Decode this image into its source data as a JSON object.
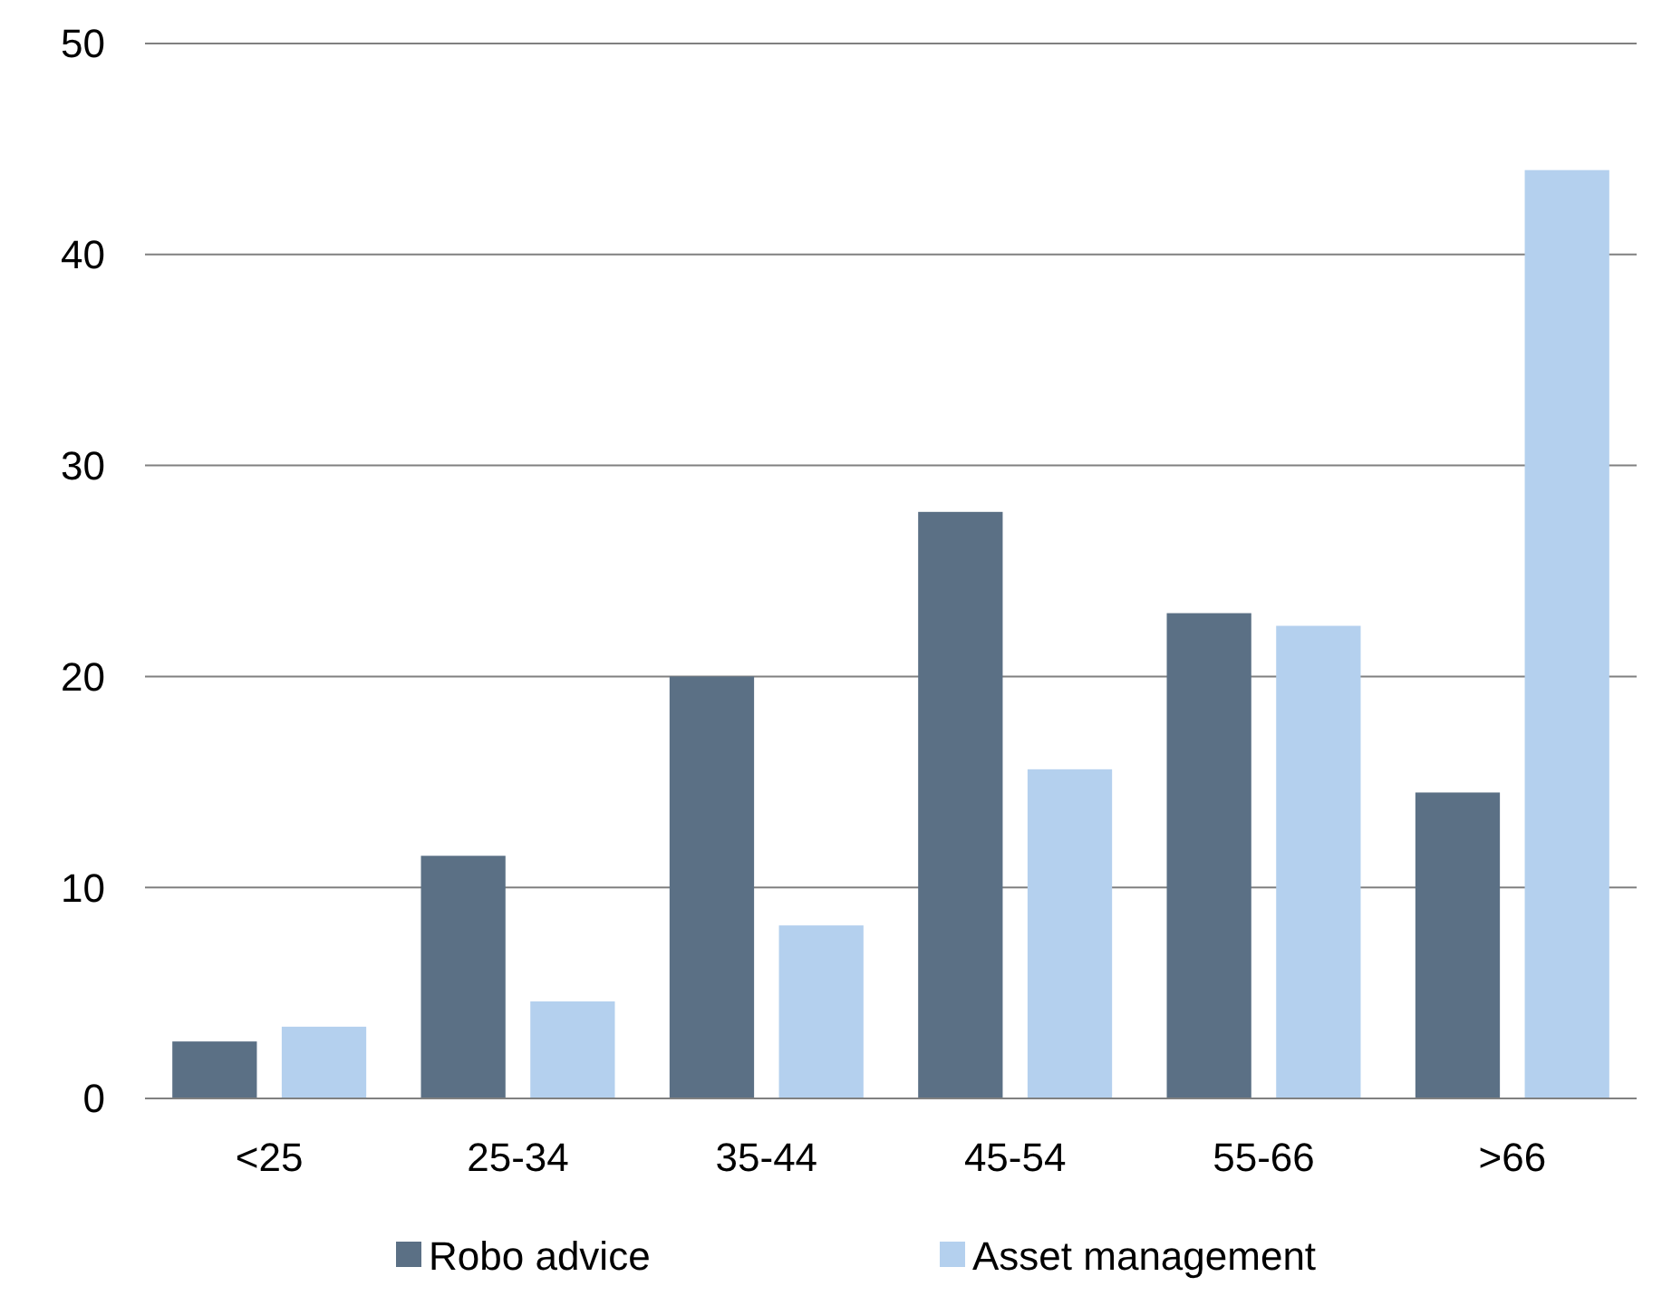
{
  "chart_data": {
    "type": "bar",
    "categories": [
      "<25",
      "25-34",
      "35-44",
      "45-54",
      "55-66",
      ">66"
    ],
    "series": [
      {
        "name": "Robo advice",
        "color": "#5b7085",
        "values": [
          2.7,
          11.5,
          20,
          27.8,
          23,
          14.5
        ]
      },
      {
        "name": "Asset management",
        "color": "#b4d0ee",
        "values": [
          3.4,
          4.6,
          8.2,
          15.6,
          22.4,
          44
        ]
      }
    ],
    "ylim": [
      0,
      50
    ],
    "yticks": [
      0,
      10,
      20,
      30,
      40,
      50
    ],
    "grid": "y",
    "legend": "bottom"
  }
}
